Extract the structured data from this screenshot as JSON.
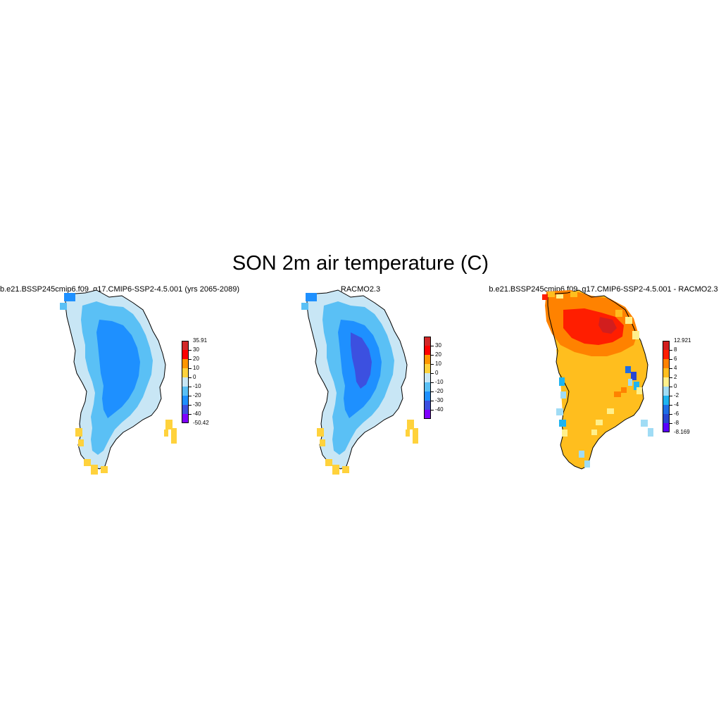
{
  "title": "SON 2m air temperature (C)",
  "panels": [
    {
      "id": "model",
      "title": "b.e21.BSSP245cmip6.f09_g17.CMIP6-SSP2-4.5.001 (yrs 2065-2089)",
      "colorbar": {
        "colors": [
          "#7f00ff",
          "#3c50e0",
          "#1e90ff",
          "#5ac0f5",
          "#c8e6f5",
          "#ffd23c",
          "#ff9600",
          "#ff0000",
          "#d22828"
        ],
        "labels": [
          "35.91",
          "30",
          "20",
          "10",
          "0",
          "-10",
          "-20",
          "-30",
          "-40",
          "-50.42"
        ]
      }
    },
    {
      "id": "obs",
      "title": "RACMO2.3",
      "colorbar": {
        "colors": [
          "#7f00ff",
          "#3c50e0",
          "#1e90ff",
          "#5ac0f5",
          "#c8e6f5",
          "#ffd23c",
          "#ff9600",
          "#ff0000",
          "#d22828"
        ],
        "labels": [
          "",
          "30",
          "20",
          "10",
          "0",
          "-10",
          "-20",
          "-30",
          "-40",
          ""
        ]
      }
    },
    {
      "id": "diff",
      "title": "b.e21.BSSP245cmip6.f09_g17.CMIP6-SSP2-4.5.001 - RACMO2.3",
      "colorbar": {
        "colors": [
          "#5a00ff",
          "#2846d2",
          "#1e6ee6",
          "#1eb4f0",
          "#a0dcf5",
          "#fff08c",
          "#ffbe1e",
          "#ff8200",
          "#ff1e00",
          "#d21e1e"
        ],
        "labels": [
          "12.921",
          "8",
          "6",
          "4",
          "2",
          "0",
          "-2",
          "-4",
          "-6",
          "-8",
          "-8.169"
        ]
      }
    }
  ]
}
